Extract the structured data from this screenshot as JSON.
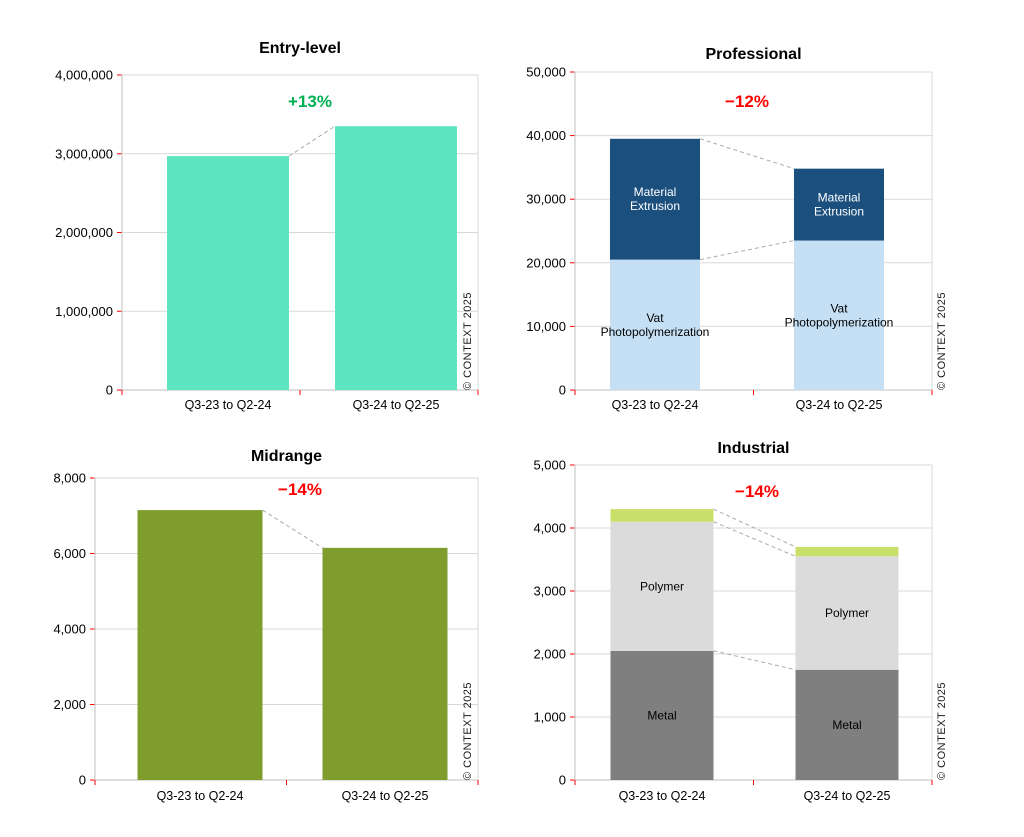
{
  "watermark": "© CONTEXT 2025",
  "chart_data": [
    {
      "type": "bar",
      "title": "Entry-level",
      "categories": [
        "Q3-23 to Q2-24",
        "Q3-24 to Q2-25"
      ],
      "values": [
        2970000,
        3350000
      ],
      "bar_color": "#5CE5C0",
      "change_label": "+13%",
      "change_color": "#00B050",
      "ylim": [
        0,
        4000000
      ],
      "ytick_labels": [
        "0",
        "1,000,000",
        "2,000,000",
        "3,000,000",
        "4,000,000"
      ],
      "grid": true,
      "legend": "none"
    },
    {
      "type": "stacked-bar",
      "title": "Professional",
      "categories": [
        "Q3-23 to Q2-24",
        "Q3-24 to Q2-25"
      ],
      "series": [
        {
          "name": "Vat Photopolymerization",
          "values": [
            20500,
            23500
          ],
          "color": "#C5E0F4",
          "label_color": "#000000"
        },
        {
          "name": "Material Extrusion",
          "values": [
            19000,
            11300
          ],
          "color": "#1B4F7E",
          "label_color": "#FFFFFF"
        }
      ],
      "change_label": "−12%",
      "change_color": "#FF0000",
      "ylim": [
        0,
        50000
      ],
      "ytick_labels": [
        "0",
        "10,000",
        "20,000",
        "30,000",
        "40,000",
        "50,000"
      ],
      "grid": true,
      "legend": "inside-bars"
    },
    {
      "type": "bar",
      "title": "Midrange",
      "categories": [
        "Q3-23 to Q2-24",
        "Q3-24 to Q2-25"
      ],
      "values": [
        7150,
        6150
      ],
      "bar_color": "#7E9D2D",
      "change_label": "−14%",
      "change_color": "#FF0000",
      "ylim": [
        0,
        8000
      ],
      "ytick_labels": [
        "0",
        "2,000",
        "4,000",
        "6,000",
        "8,000"
      ],
      "grid": true,
      "legend": "none"
    },
    {
      "type": "stacked-bar",
      "title": "Industrial",
      "categories": [
        "Q3-23 to Q2-24",
        "Q3-24 to Q2-25"
      ],
      "series": [
        {
          "name": "Metal",
          "values": [
            2050,
            1750
          ],
          "color": "#7F7F7F",
          "label_color": "#000000"
        },
        {
          "name": "Polymer",
          "values": [
            2050,
            1800
          ],
          "color": "#DBDBDB",
          "label_color": "#000000"
        },
        {
          "name": "",
          "values": [
            200,
            150
          ],
          "color": "#C8E06A",
          "label_color": "#000000"
        }
      ],
      "change_label": "−14%",
      "change_color": "#FF0000",
      "ylim": [
        0,
        5000
      ],
      "ytick_labels": [
        "0",
        "1,000",
        "2,000",
        "3,000",
        "4,000",
        "5,000"
      ],
      "grid": true,
      "legend": "inside-bars"
    }
  ]
}
